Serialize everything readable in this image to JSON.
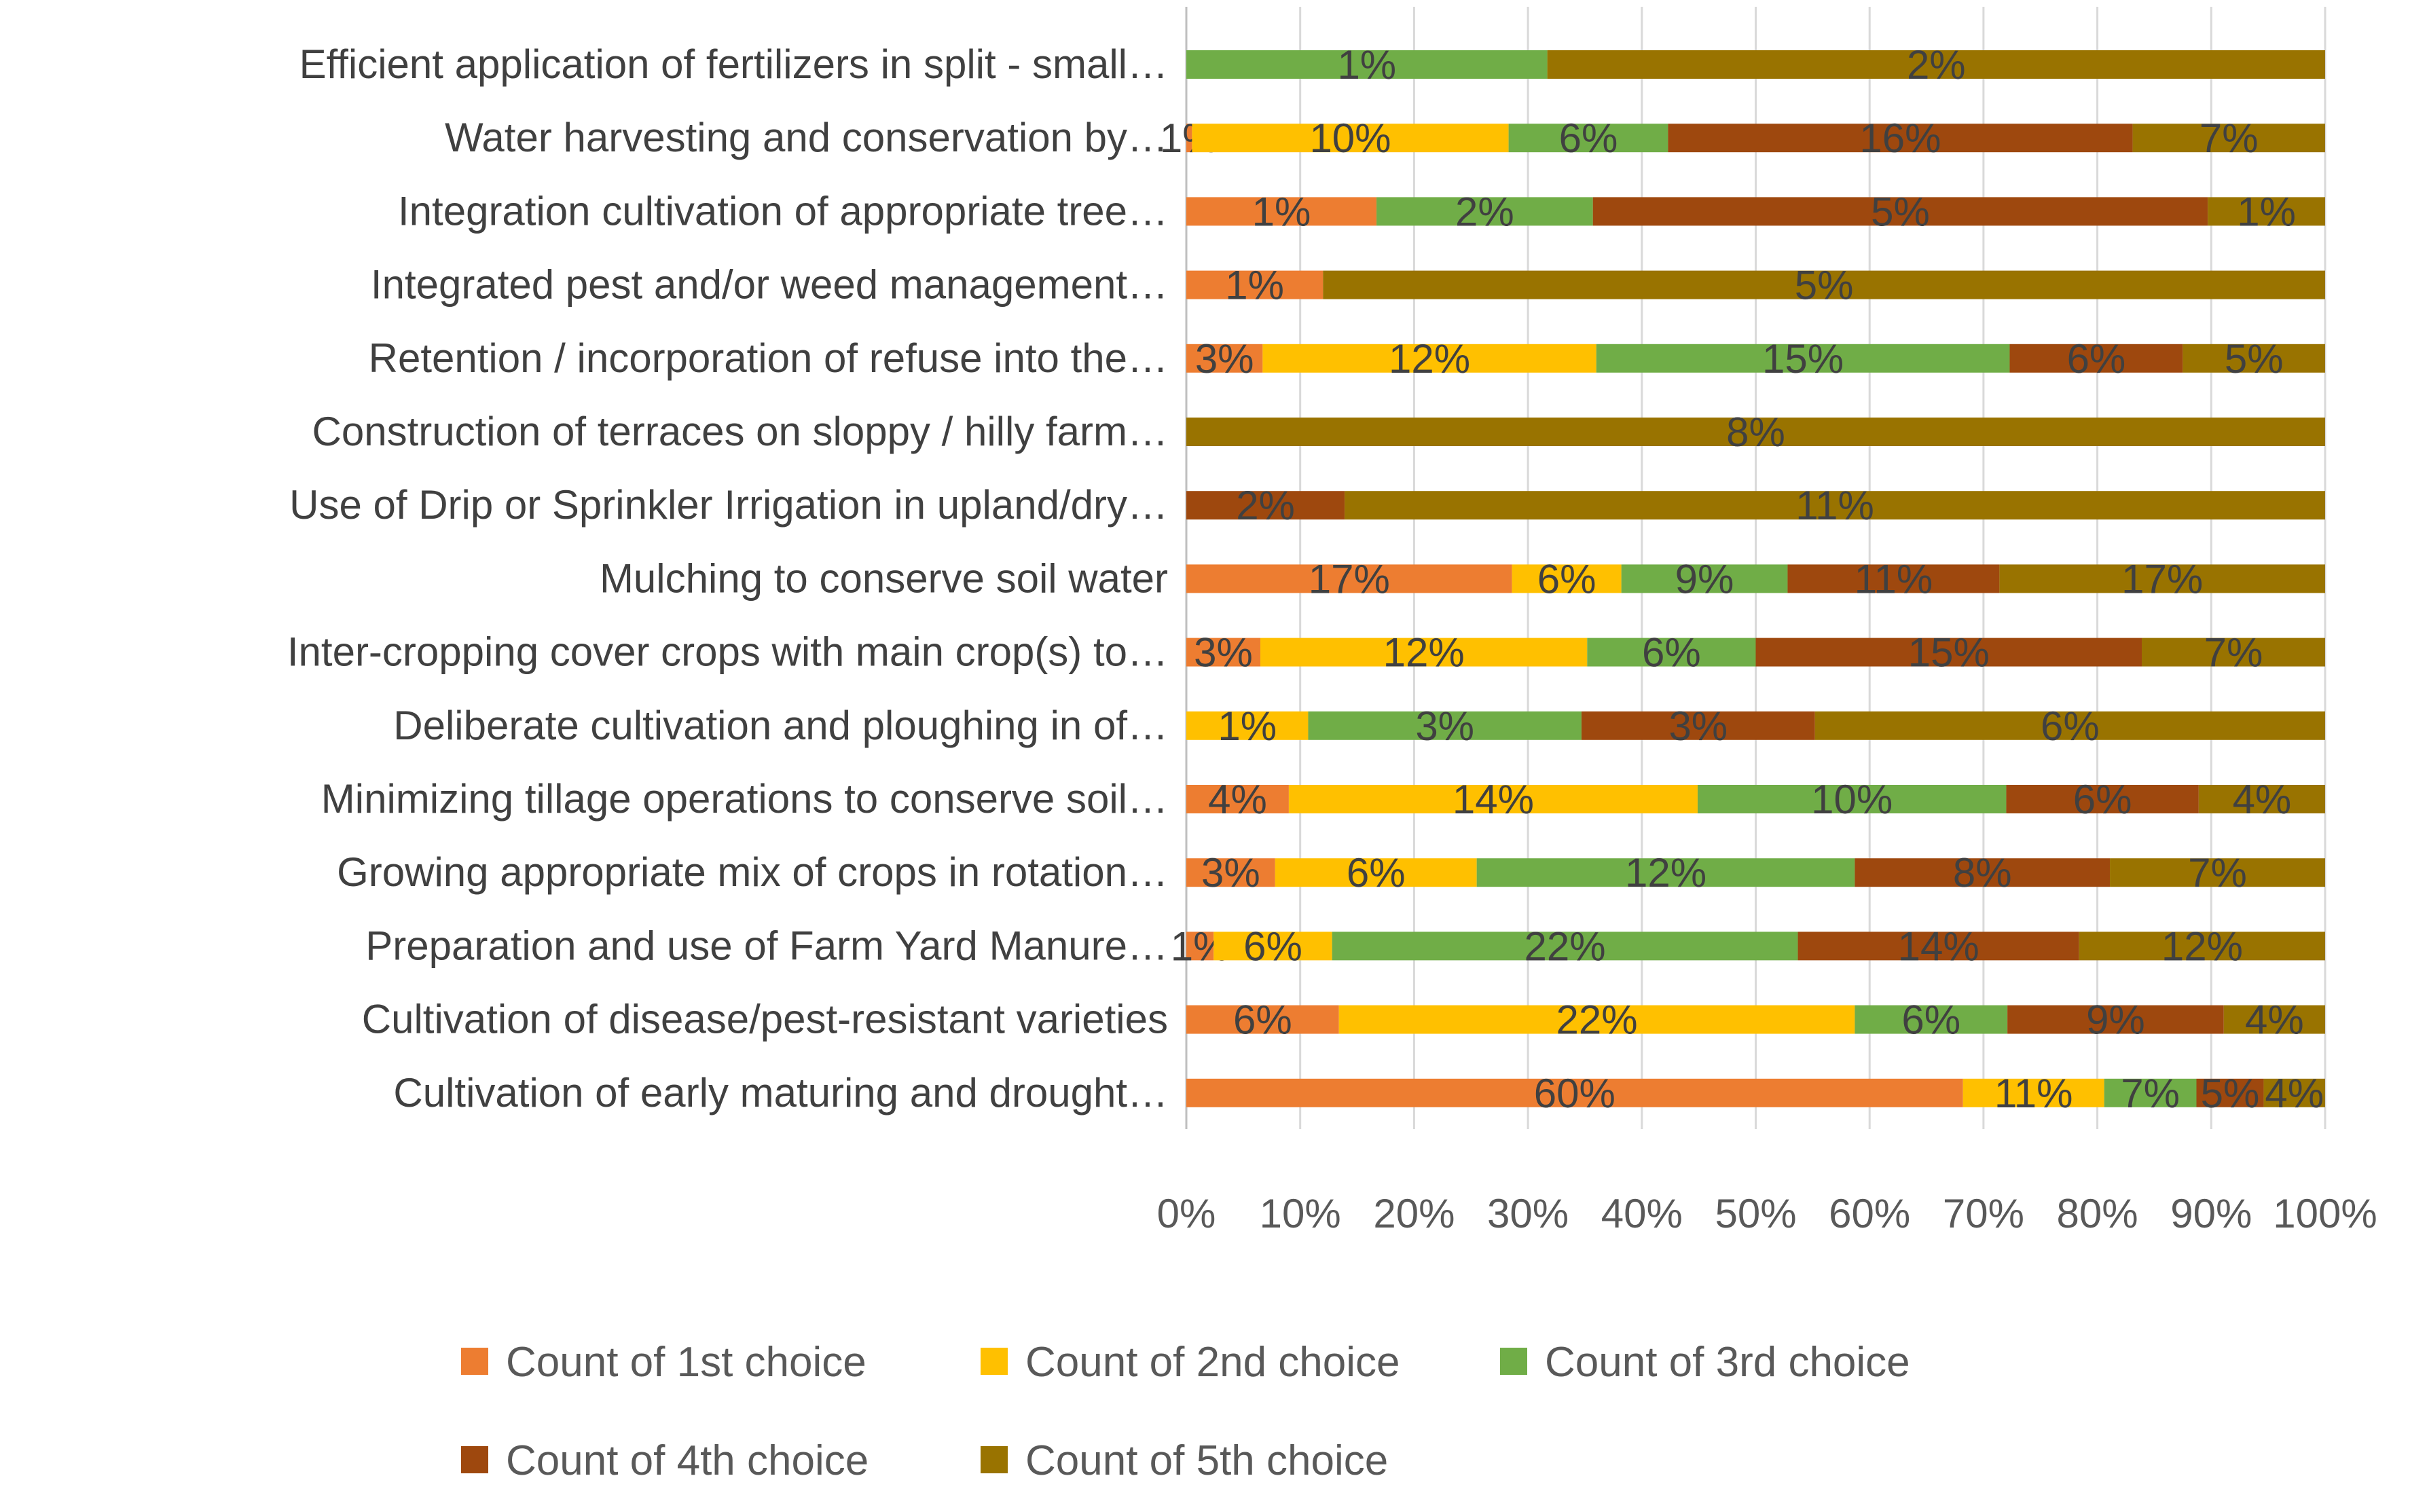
{
  "chart_data": {
    "type": "bar",
    "orientation": "horizontal",
    "stacked": "100%",
    "title": "",
    "xlabel": "",
    "ylabel": "",
    "xlim": [
      0,
      100
    ],
    "x_ticks": [
      "0%",
      "10%",
      "20%",
      "30%",
      "40%",
      "50%",
      "60%",
      "70%",
      "80%",
      "90%",
      "100%"
    ],
    "grid": true,
    "legend_position": "bottom",
    "categories": [
      "Efficient application of fertilizers in split - small…",
      "Water harvesting and conservation by…",
      "Integration cultivation of appropriate tree…",
      "Integrated pest and/or weed management…",
      "Retention / incorporation of refuse into the…",
      "Construction of terraces on sloppy / hilly farm…",
      "Use of Drip or Sprinkler Irrigation in upland/dry…",
      "Mulching to conserve soil water",
      "Inter-cropping cover crops with main crop(s) to…",
      "Deliberate cultivation and ploughing in of…",
      "Minimizing tillage operations to conserve soil…",
      "Growing appropriate mix of crops in rotation…",
      "Preparation and use of Farm Yard Manure…",
      "Cultivation of disease/pest-resistant varieties",
      "Cultivation of early maturing and drought…"
    ],
    "series": [
      {
        "name": "Count of 1st choice",
        "color": "#ED7D31",
        "values": [
          0,
          0.5,
          16.7,
          12,
          6.7,
          0,
          0,
          28.6,
          6.5,
          0,
          9,
          7.8,
          2.4,
          13.4,
          68.2
        ],
        "labels": [
          "",
          "1%",
          "1%",
          "1%",
          "3%",
          "",
          "",
          "17%",
          "3%",
          "",
          "4%",
          "3%",
          "1%",
          "6%",
          "60%"
        ]
      },
      {
        "name": "Count of 2nd choice",
        "color": "#FFC000",
        "values": [
          0,
          27.8,
          0,
          0,
          29.3,
          0,
          0,
          9.6,
          28.7,
          10.7,
          35.9,
          17.7,
          10.4,
          45.3,
          12.4
        ],
        "labels": [
          "",
          "10%",
          "",
          "",
          "12%",
          "",
          "",
          "6%",
          "12%",
          "1%",
          "14%",
          "6%",
          "6%",
          "22%",
          "11%"
        ]
      },
      {
        "name": "Count of 3rd choice",
        "color": "#70AD47",
        "values": [
          31.7,
          14,
          19,
          0,
          36.3,
          0,
          0,
          14.6,
          14.8,
          24,
          27.1,
          33.2,
          40.9,
          13.4,
          8.1
        ],
        "labels": [
          "1%",
          "6%",
          "2%",
          "",
          "15%",
          "",
          "",
          "9%",
          "6%",
          "3%",
          "10%",
          "12%",
          "22%",
          "6%",
          "7%"
        ]
      },
      {
        "name": "Count of 4th choice",
        "color": "#9E480E",
        "values": [
          0,
          40.8,
          54,
          0,
          15.2,
          0,
          13.9,
          18.6,
          33.9,
          20.5,
          16.9,
          22.4,
          24.7,
          19,
          5.9
        ],
        "labels": [
          "",
          "16%",
          "5%",
          "",
          "6%",
          "",
          "2%",
          "11%",
          "15%",
          "3%",
          "6%",
          "8%",
          "14%",
          "9%",
          "5%"
        ]
      },
      {
        "name": "Count of 5th choice",
        "color": "#997300",
        "values": [
          68.3,
          16.9,
          10.3,
          88,
          12.5,
          100,
          86.1,
          28.6,
          16.1,
          44.8,
          11.1,
          18.9,
          21.6,
          8.9,
          5.4
        ],
        "labels": [
          "2%",
          "7%",
          "1%",
          "5%",
          "5%",
          "8%",
          "11%",
          "17%",
          "7%",
          "6%",
          "4%",
          "7%",
          "12%",
          "4%",
          "4%"
        ]
      }
    ]
  }
}
